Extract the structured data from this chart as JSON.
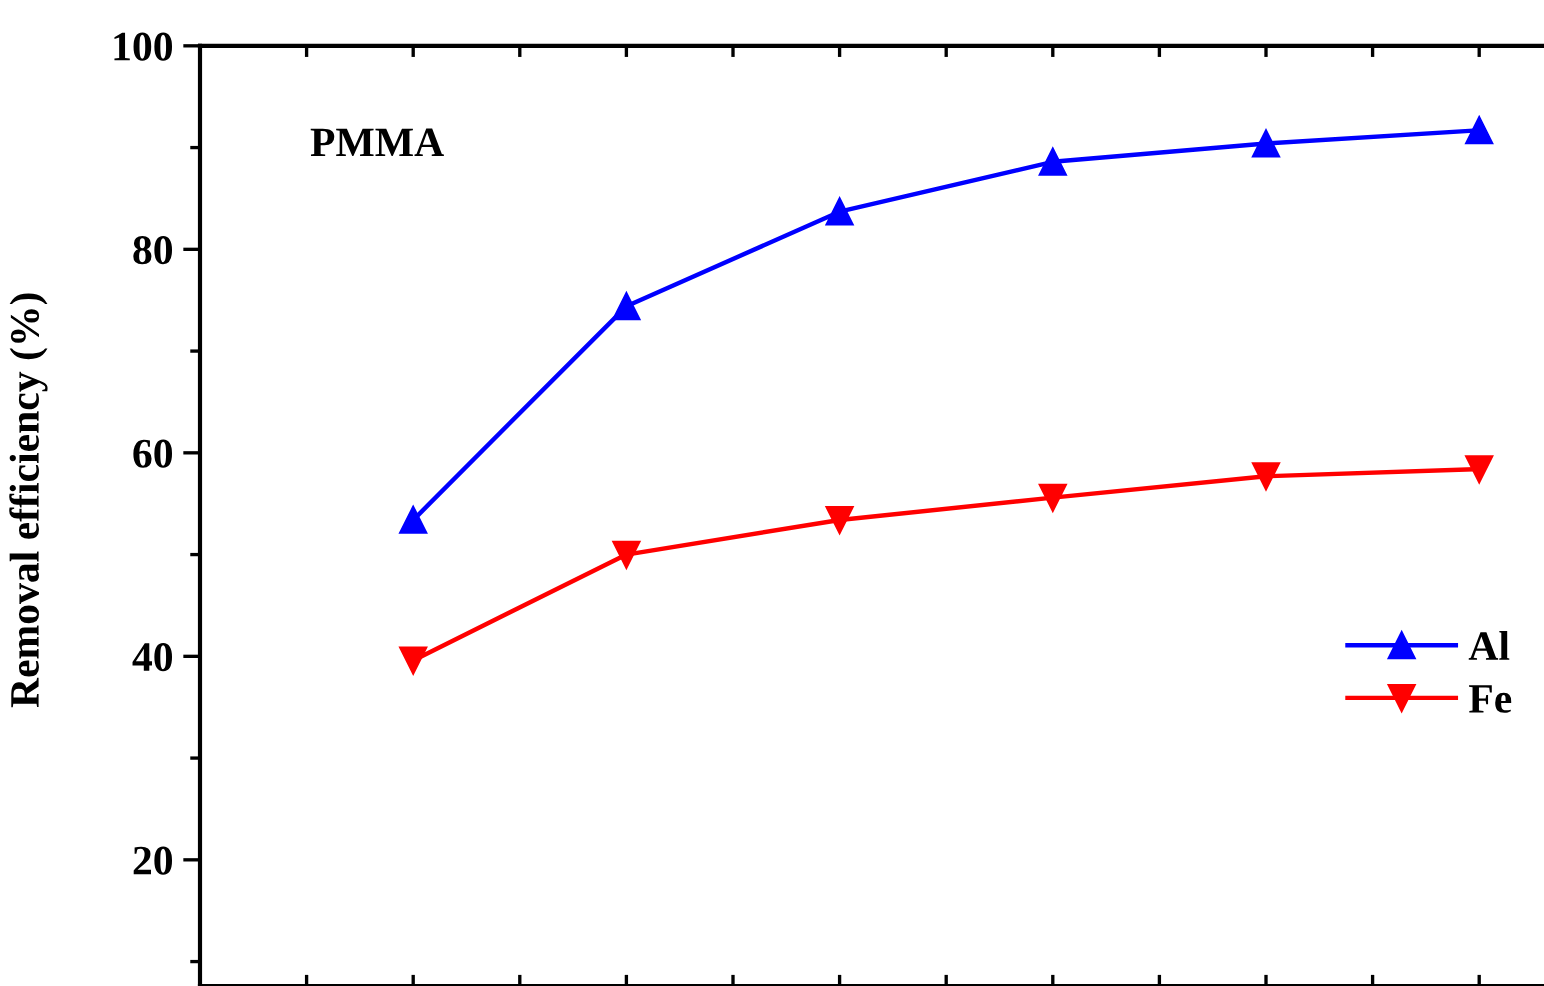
{
  "chart_data": {
    "type": "line",
    "ylabel": "Removal efficiency (%)",
    "annotations": [
      "PMMA"
    ],
    "categories": [
      null,
      null,
      null,
      null,
      null,
      null,
      null
    ],
    "ylim": [
      7.6,
      100
    ],
    "yticks": [
      20,
      40,
      60,
      80,
      100
    ],
    "grid": false,
    "legend": "right",
    "tick_labels": "y",
    "line_style": "solid",
    "series": [
      {
        "name": "Al",
        "color": "#0000ff",
        "marker": "triangle",
        "values": [
          null,
          53.4,
          74.4,
          83.7,
          88.6,
          90.4,
          91.7
        ]
      },
      {
        "name": "Fe",
        "color": "#ff0000",
        "marker": "triangle-down",
        "values": [
          null,
          39.6,
          50.0,
          53.4,
          55.6,
          57.7,
          58.4
        ]
      }
    ]
  }
}
